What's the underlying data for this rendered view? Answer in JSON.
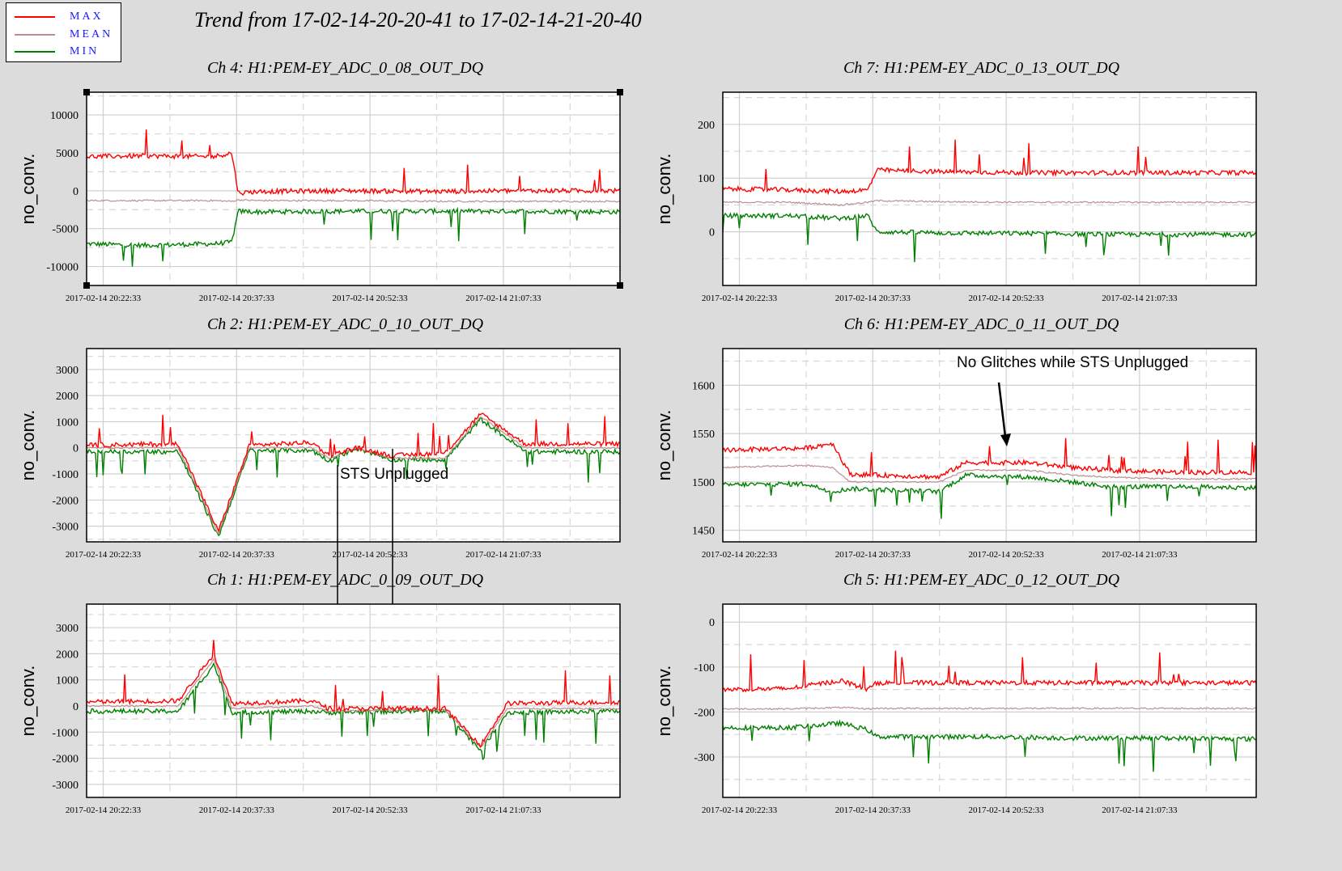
{
  "title": "Trend from 17-02-14-20-20-41 to 17-02-14-21-20-40",
  "legend": [
    {
      "label": "MAX",
      "color": "#ff0000"
    },
    {
      "label": "MEAN",
      "color": "#bc8f8f"
    },
    {
      "label": "MIN",
      "color": "#008000"
    }
  ],
  "colors": {
    "max": "#ff0000",
    "mean": "#bc8f8f",
    "min": "#008000"
  },
  "chart_data": [
    {
      "type": "line",
      "title": "Ch 4: H1:PEM-EY_ADC_0_08_OUT_DQ",
      "ylabel": "no_conv.",
      "ylim": [
        -12500,
        13000
      ],
      "yticks": [
        10000,
        5000,
        0,
        -5000,
        -10000
      ],
      "ytick_labels": [
        "10000",
        "5000",
        "0",
        "-5000",
        "-10000"
      ],
      "x_tick_labels": [
        "2017-02-14 20:22:33",
        "2017-02-14 20:37:33",
        "2017-02-14 20:52:33",
        "2017-02-14 21:07:33"
      ],
      "x": [
        "20:20:41",
        "20:27:00",
        "20:35:00",
        "20:37:00",
        "20:37:45",
        "20:40:00",
        "20:50:00",
        "21:00:00",
        "21:10:00",
        "21:20:40"
      ],
      "series": [
        {
          "name": "MAX",
          "values": [
            4500,
            4600,
            4500,
            5000,
            -300,
            -100,
            0,
            -100,
            0,
            0
          ]
        },
        {
          "name": "MEAN",
          "values": [
            -1300,
            -1300,
            -1300,
            -1400,
            -1200,
            -1300,
            -1300,
            -1400,
            -1400,
            -1400
          ]
        },
        {
          "name": "MIN",
          "values": [
            -7000,
            -7200,
            -7000,
            -6800,
            -2700,
            -2800,
            -2700,
            -2700,
            -2700,
            -2800
          ]
        }
      ]
    },
    {
      "type": "line",
      "title": "Ch 7: H1:PEM-EY_ADC_0_13_OUT_DQ",
      "ylabel": "no_conv.",
      "ylim": [
        -100,
        260
      ],
      "yticks": [
        200,
        100,
        0
      ],
      "ytick_labels": [
        "200",
        "100",
        "0"
      ],
      "x_tick_labels": [
        "2017-02-14 20:22:33",
        "2017-02-14 20:37:33",
        "2017-02-14 20:52:33",
        "2017-02-14 21:07:33"
      ],
      "x": [
        "20:20:41",
        "20:28:00",
        "20:34:00",
        "20:37:00",
        "20:38:00",
        "20:45:00",
        "20:55:00",
        "21:05:00",
        "21:12:00",
        "21:20:40"
      ],
      "series": [
        {
          "name": "MAX",
          "values": [
            80,
            78,
            75,
            78,
            115,
            112,
            110,
            110,
            110,
            110
          ]
        },
        {
          "name": "MEAN",
          "values": [
            55,
            55,
            50,
            55,
            58,
            56,
            55,
            55,
            55,
            55
          ]
        },
        {
          "name": "MIN",
          "values": [
            30,
            30,
            25,
            30,
            0,
            -2,
            -3,
            -5,
            -5,
            -5
          ]
        }
      ]
    },
    {
      "type": "line",
      "title": "Ch 2: H1:PEM-EY_ADC_0_10_OUT_DQ",
      "ylabel": "no_conv.",
      "ylim": [
        -3600,
        3800
      ],
      "yticks": [
        3000,
        2000,
        1000,
        0,
        -1000,
        -2000,
        -3000
      ],
      "ytick_labels": [
        "3000",
        "2000",
        "1000",
        "0",
        "-1000",
        "-2000",
        "-3000"
      ],
      "x_tick_labels": [
        "2017-02-14 20:22:33",
        "2017-02-14 20:37:33",
        "2017-02-14 20:52:33",
        "2017-02-14 21:07:33"
      ],
      "x": [
        "20:20:41",
        "20:31:00",
        "20:35:30",
        "20:39:00",
        "20:46:00",
        "20:48:00",
        "20:51:00",
        "20:55:00",
        "21:01:00",
        "21:05:00",
        "21:10:00",
        "21:20:40"
      ],
      "series": [
        {
          "name": "MAX",
          "values": [
            100,
            150,
            -3200,
            100,
            200,
            -300,
            0,
            -300,
            -200,
            1300,
            150,
            150
          ]
        },
        {
          "name": "MEAN",
          "values": [
            0,
            0,
            -3300,
            0,
            0,
            -400,
            0,
            -400,
            -400,
            1200,
            0,
            0
          ]
        },
        {
          "name": "MIN",
          "values": [
            -150,
            -150,
            -3400,
            -100,
            -100,
            -500,
            0,
            -450,
            -450,
            1100,
            -150,
            -150
          ]
        }
      ],
      "annotations": [
        {
          "text": "STS Unplugged"
        }
      ]
    },
    {
      "type": "line",
      "title": "Ch 6: H1:PEM-EY_ADC_0_11_OUT_DQ",
      "ylabel": "no_conv.",
      "ylim": [
        1438,
        1638
      ],
      "yticks": [
        1600,
        1550,
        1500,
        1450
      ],
      "ytick_labels": [
        "1600",
        "1550",
        "1500",
        "1450"
      ],
      "x_tick_labels": [
        "2017-02-14 20:22:33",
        "2017-02-14 20:37:33",
        "2017-02-14 20:52:33",
        "2017-02-14 21:07:33"
      ],
      "x": [
        "20:20:41",
        "20:30:00",
        "20:33:00",
        "20:35:00",
        "20:45:00",
        "20:48:00",
        "20:55:00",
        "21:00:00",
        "21:04:00",
        "21:12:00",
        "21:20:40"
      ],
      "series": [
        {
          "name": "MAX",
          "values": [
            1533,
            1535,
            1540,
            1508,
            1505,
            1520,
            1520,
            1515,
            1512,
            1510,
            1510
          ]
        },
        {
          "name": "MEAN",
          "values": [
            1515,
            1517,
            1515,
            1500,
            1500,
            1512,
            1512,
            1507,
            1505,
            1503,
            1503
          ]
        },
        {
          "name": "MIN",
          "values": [
            1497,
            1498,
            1490,
            1493,
            1490,
            1507,
            1505,
            1500,
            1495,
            1495,
            1494
          ]
        }
      ],
      "annotations": [
        {
          "text": "No Glitches while STS Unplugged"
        }
      ]
    },
    {
      "type": "line",
      "title": "Ch 1: H1:PEM-EY_ADC_0_09_OUT_DQ",
      "ylabel": "no_conv.",
      "ylim": [
        -3500,
        3900
      ],
      "yticks": [
        3000,
        2000,
        1000,
        0,
        -1000,
        -2000,
        -3000
      ],
      "ytick_labels": [
        "3000",
        "2000",
        "1000",
        "0",
        "-1000",
        "-2000",
        "-3000"
      ],
      "x_tick_labels": [
        "2017-02-14 20:22:33",
        "2017-02-14 20:37:33",
        "2017-02-14 20:52:33",
        "2017-02-14 21:07:33"
      ],
      "x": [
        "20:20:41",
        "20:31:00",
        "20:35:00",
        "20:37:00",
        "20:46:00",
        "20:48:00",
        "20:55:00",
        "21:01:00",
        "21:05:00",
        "21:08:00",
        "21:20:40"
      ],
      "series": [
        {
          "name": "MAX",
          "values": [
            150,
            200,
            2000,
            100,
            200,
            -100,
            -100,
            -100,
            -1500,
            100,
            150
          ]
        },
        {
          "name": "MEAN",
          "values": [
            0,
            0,
            1800,
            -100,
            0,
            -200,
            -150,
            -150,
            -1600,
            -100,
            -100
          ]
        },
        {
          "name": "MIN",
          "values": [
            -200,
            -200,
            1600,
            -250,
            -200,
            -250,
            -200,
            -200,
            -1700,
            -250,
            -200
          ]
        }
      ]
    },
    {
      "type": "line",
      "title": "Ch 5: H1:PEM-EY_ADC_0_12_OUT_DQ",
      "ylabel": "no_conv.",
      "ylim": [
        -390,
        40
      ],
      "yticks": [
        0,
        -100,
        -200,
        -300
      ],
      "ytick_labels": [
        "0",
        "-100",
        "-200",
        "-300"
      ],
      "x_tick_labels": [
        "2017-02-14 20:22:33",
        "2017-02-14 20:37:33",
        "2017-02-14 20:52:33",
        "2017-02-14 21:07:33"
      ],
      "x": [
        "20:20:41",
        "20:28:00",
        "20:34:00",
        "20:37:00",
        "20:38:00",
        "20:50:00",
        "21:00:00",
        "21:10:00",
        "21:20:40"
      ],
      "series": [
        {
          "name": "MAX",
          "values": [
            -150,
            -148,
            -130,
            -150,
            -135,
            -135,
            -135,
            -135,
            -135
          ]
        },
        {
          "name": "MEAN",
          "values": [
            -193,
            -193,
            -190,
            -193,
            -192,
            -192,
            -192,
            -192,
            -192
          ]
        },
        {
          "name": "MIN",
          "values": [
            -235,
            -235,
            -225,
            -240,
            -255,
            -255,
            -258,
            -258,
            -260
          ]
        }
      ]
    }
  ]
}
